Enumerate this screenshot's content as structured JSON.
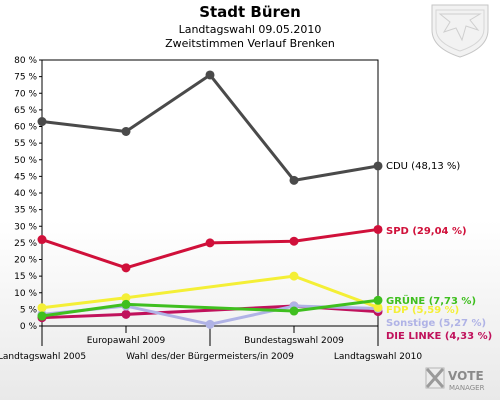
{
  "chart_data": {
    "type": "line",
    "title": "Stadt Büren",
    "subtitle_1": "Landtagswahl 09.05.2010",
    "subtitle_2": "Zweitstimmen Verlauf Brenken",
    "y_ticks": [
      "0 %",
      "5 %",
      "10 %",
      "15 %",
      "20 %",
      "25 %",
      "30 %",
      "35 %",
      "40 %",
      "45 %",
      "50 %",
      "55 %",
      "60 %",
      "65 %",
      "70 %",
      "75 %",
      "80 %"
    ],
    "ylim": [
      0,
      80
    ],
    "grid": false,
    "categories": [
      "Landtagswahl 2005",
      "Europawahl 2009",
      "Wahl des/der Bürgermeisters/in 2009",
      "Bundestagswahl 2009",
      "Landtagswahl 2010"
    ],
    "series": [
      {
        "name": "CDU",
        "label": "CDU (48,13 %)",
        "color": "#4a4a4a",
        "label_color": "#000000",
        "values": [
          61.5,
          58.5,
          75.5,
          43.8,
          48.13
        ]
      },
      {
        "name": "SPD",
        "label": "SPD (29,04 %)",
        "color": "#d0103a",
        "label_color": "#d0103a",
        "values": [
          26.0,
          17.5,
          25.0,
          25.5,
          29.04
        ]
      },
      {
        "name": "GRÜNE",
        "label": "GRÜNE (7,73 %)",
        "color": "#3fbf1f",
        "label_color": "#3fbf1f",
        "values": [
          3.0,
          6.5,
          null,
          4.5,
          7.73
        ]
      },
      {
        "name": "FDP",
        "label": "FDP (5,59 %)",
        "color": "#f4ef36",
        "label_color": "#f4ef36",
        "values": [
          5.5,
          8.5,
          null,
          15.0,
          5.59
        ]
      },
      {
        "name": "Sonstige",
        "label": "Sonstige (5,27 %)",
        "color": "#b0b3e6",
        "label_color": "#b0b3e6",
        "values": [
          3.5,
          6.0,
          0.5,
          6.0,
          5.27
        ]
      },
      {
        "name": "DIE LINKE",
        "label": "DIE LINKE (4,33 %)",
        "color": "#c0125c",
        "label_color": "#c0125c",
        "values": [
          2.5,
          3.5,
          null,
          6.0,
          4.33
        ]
      }
    ]
  },
  "branding": {
    "line1": "VOTE",
    "line2": "MANAGER",
    "crest": "crest-icon"
  }
}
